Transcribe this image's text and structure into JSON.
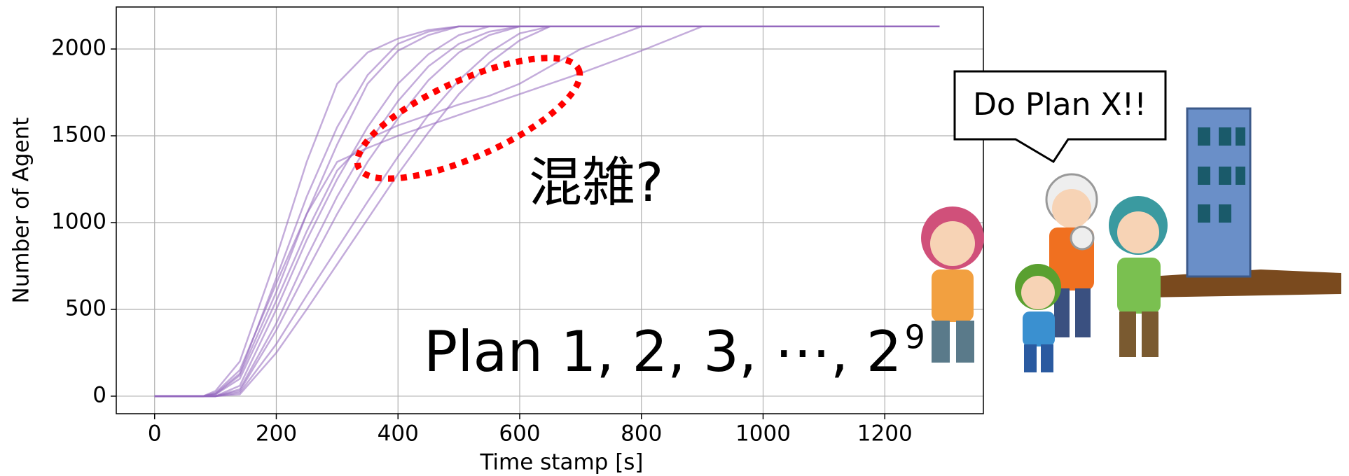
{
  "chart_data": {
    "type": "line",
    "xlabel": "Time stamp [s]",
    "ylabel": "Number of Agent",
    "x": [
      0,
      80,
      100,
      140,
      200,
      250,
      300,
      350,
      400,
      450,
      500,
      550,
      600,
      650,
      700,
      800,
      900,
      1290
    ],
    "series": [
      {
        "color": "#9467bd",
        "values": [
          0,
          0,
          30,
          200,
          800,
          1350,
          1800,
          1980,
          2060,
          2110,
          2130,
          2130,
          2130,
          2130,
          2130,
          2130,
          2130,
          2130
        ]
      },
      {
        "color": "#9467bd",
        "values": [
          0,
          0,
          10,
          120,
          600,
          1050,
          1450,
          1800,
          1990,
          2080,
          2130,
          2130,
          2130,
          2130,
          2130,
          2130,
          2130,
          2130
        ]
      },
      {
        "color": "#9467bd",
        "values": [
          0,
          0,
          0,
          60,
          500,
          900,
          1250,
          1550,
          1800,
          1970,
          2080,
          2130,
          2130,
          2130,
          2130,
          2130,
          2130,
          2130
        ]
      },
      {
        "color": "#9467bd",
        "values": [
          0,
          0,
          0,
          30,
          380,
          720,
          1050,
          1350,
          1600,
          1820,
          1980,
          2080,
          2130,
          2130,
          2130,
          2130,
          2130,
          2130
        ]
      },
      {
        "color": "#9467bd",
        "values": [
          0,
          0,
          0,
          20,
          300,
          580,
          850,
          1120,
          1380,
          1620,
          1820,
          1980,
          2090,
          2130,
          2130,
          2130,
          2130,
          2130
        ]
      },
      {
        "color": "#9467bd",
        "values": [
          0,
          0,
          20,
          150,
          650,
          1050,
          1350,
          1430,
          1500,
          1560,
          1620,
          1680,
          1740,
          1800,
          1860,
          1990,
          2130,
          2130
        ]
      },
      {
        "color": "#9467bd",
        "values": [
          0,
          0,
          10,
          100,
          550,
          950,
          1300,
          1480,
          1560,
          1620,
          1680,
          1730,
          1800,
          1900,
          2000,
          2130,
          2130,
          2130
        ]
      },
      {
        "color": "#9467bd",
        "values": [
          0,
          0,
          0,
          40,
          420,
          800,
          1150,
          1450,
          1700,
          1900,
          2030,
          2100,
          2130,
          2130,
          2130,
          2130,
          2130,
          2130
        ]
      },
      {
        "color": "#9467bd",
        "values": [
          0,
          0,
          0,
          10,
          250,
          500,
          760,
          1020,
          1280,
          1520,
          1740,
          1920,
          2050,
          2130,
          2130,
          2130,
          2130,
          2130
        ]
      },
      {
        "color": "#9467bd",
        "values": [
          0,
          0,
          15,
          130,
          680,
          1150,
          1550,
          1850,
          2030,
          2100,
          2130,
          2130,
          2130,
          2130,
          2130,
          2130,
          2130,
          2130
        ]
      }
    ],
    "xlim": [
      -63,
      1362
    ],
    "ylim": [
      -101,
      2242
    ],
    "xticks": [
      0,
      200,
      400,
      600,
      800,
      1000,
      1200
    ],
    "yticks": [
      0,
      500,
      1000,
      1500,
      2000
    ],
    "grid": true,
    "annotations": {
      "congestion": "混雑?",
      "plans": "Plan 1, 2, 3, ⋯, 2",
      "plans_superscript": "9"
    }
  },
  "illustration": {
    "speech": "Do Plan X!!"
  }
}
